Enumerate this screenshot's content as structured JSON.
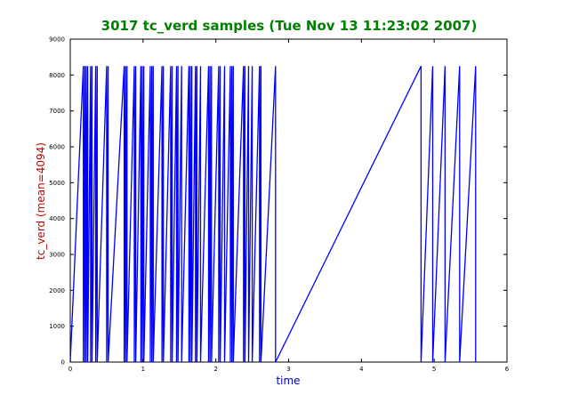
{
  "chart_data": {
    "type": "line",
    "title": "3017 tc_verd samples (Tue Nov 13 11:23:02 2007)",
    "xlabel": "time",
    "ylabel": "tc_verd (mean=4094)",
    "xlim": [
      0,
      6
    ],
    "ylim": [
      0,
      9000
    ],
    "xticks": [
      "0",
      "1",
      "2",
      "3",
      "4",
      "5",
      "6"
    ],
    "yticks": [
      "0",
      "1000",
      "2000",
      "3000",
      "4000",
      "5000",
      "6000",
      "7000",
      "8000",
      "9000"
    ],
    "grid": false,
    "colors": {
      "line": "#0000ff",
      "title": "#008000",
      "xlabel": "#0000cc",
      "ylabel": "#cc0000"
    },
    "series": [
      {
        "name": "",
        "points": [
          [
            0.0,
            0
          ],
          [
            0.18,
            8250
          ],
          [
            0.18,
            0
          ],
          [
            0.2,
            8250
          ],
          [
            0.2,
            0
          ],
          [
            0.22,
            8250
          ],
          [
            0.22,
            0
          ],
          [
            0.24,
            8250
          ],
          [
            0.24,
            0
          ],
          [
            0.28,
            8250
          ],
          [
            0.28,
            0
          ],
          [
            0.3,
            8250
          ],
          [
            0.3,
            0
          ],
          [
            0.35,
            8250
          ],
          [
            0.35,
            0
          ],
          [
            0.37,
            8250
          ],
          [
            0.37,
            0
          ],
          [
            0.5,
            8250
          ],
          [
            0.5,
            0
          ],
          [
            0.52,
            8250
          ],
          [
            0.52,
            0
          ],
          [
            0.74,
            8250
          ],
          [
            0.74,
            0
          ],
          [
            0.76,
            8250
          ],
          [
            0.76,
            0
          ],
          [
            0.78,
            8250
          ],
          [
            0.78,
            0
          ],
          [
            0.88,
            8250
          ],
          [
            0.88,
            0
          ],
          [
            0.9,
            8250
          ],
          [
            0.9,
            0
          ],
          [
            0.97,
            8250
          ],
          [
            0.97,
            0
          ],
          [
            0.99,
            8250
          ],
          [
            0.99,
            0
          ],
          [
            1.01,
            8250
          ],
          [
            1.01,
            0
          ],
          [
            1.1,
            8250
          ],
          [
            1.1,
            0
          ],
          [
            1.12,
            8250
          ],
          [
            1.12,
            0
          ],
          [
            1.14,
            8250
          ],
          [
            1.14,
            0
          ],
          [
            1.26,
            8250
          ],
          [
            1.26,
            0
          ],
          [
            1.28,
            8250
          ],
          [
            1.28,
            0
          ],
          [
            1.38,
            8250
          ],
          [
            1.38,
            0
          ],
          [
            1.4,
            8250
          ],
          [
            1.4,
            0
          ],
          [
            1.46,
            8250
          ],
          [
            1.46,
            0
          ],
          [
            1.48,
            8250
          ],
          [
            1.48,
            0
          ],
          [
            1.53,
            8250
          ],
          [
            1.53,
            0
          ],
          [
            1.63,
            8250
          ],
          [
            1.63,
            0
          ],
          [
            1.65,
            8250
          ],
          [
            1.65,
            0
          ],
          [
            1.67,
            8250
          ],
          [
            1.67,
            0
          ],
          [
            1.72,
            8250
          ],
          [
            1.72,
            0
          ],
          [
            1.74,
            8250
          ],
          [
            1.74,
            0
          ],
          [
            1.79,
            8250
          ],
          [
            1.79,
            0
          ],
          [
            1.9,
            8250
          ],
          [
            1.9,
            0
          ],
          [
            1.92,
            8250
          ],
          [
            1.92,
            0
          ],
          [
            1.94,
            8250
          ],
          [
            1.94,
            0
          ],
          [
            2.04,
            8250
          ],
          [
            2.04,
            0
          ],
          [
            2.06,
            8250
          ],
          [
            2.06,
            0
          ],
          [
            2.12,
            8250
          ],
          [
            2.12,
            0
          ],
          [
            2.2,
            8250
          ],
          [
            2.2,
            0
          ],
          [
            2.22,
            8250
          ],
          [
            2.22,
            0
          ],
          [
            2.24,
            8250
          ],
          [
            2.24,
            0
          ],
          [
            2.38,
            8250
          ],
          [
            2.38,
            0
          ],
          [
            2.4,
            8250
          ],
          [
            2.4,
            0
          ],
          [
            2.45,
            8250
          ],
          [
            2.45,
            0
          ],
          [
            2.5,
            8250
          ],
          [
            2.5,
            0
          ],
          [
            2.6,
            8250
          ],
          [
            2.6,
            0
          ],
          [
            2.62,
            8250
          ],
          [
            2.62,
            0
          ],
          [
            2.82,
            8250
          ],
          [
            2.82,
            0
          ],
          [
            4.82,
            8250
          ],
          [
            4.82,
            0
          ],
          [
            4.98,
            8250
          ],
          [
            4.98,
            0
          ],
          [
            5.15,
            8250
          ],
          [
            5.15,
            0
          ],
          [
            5.35,
            8250
          ],
          [
            5.35,
            0
          ],
          [
            5.57,
            8250
          ],
          [
            5.57,
            0
          ]
        ]
      }
    ]
  }
}
